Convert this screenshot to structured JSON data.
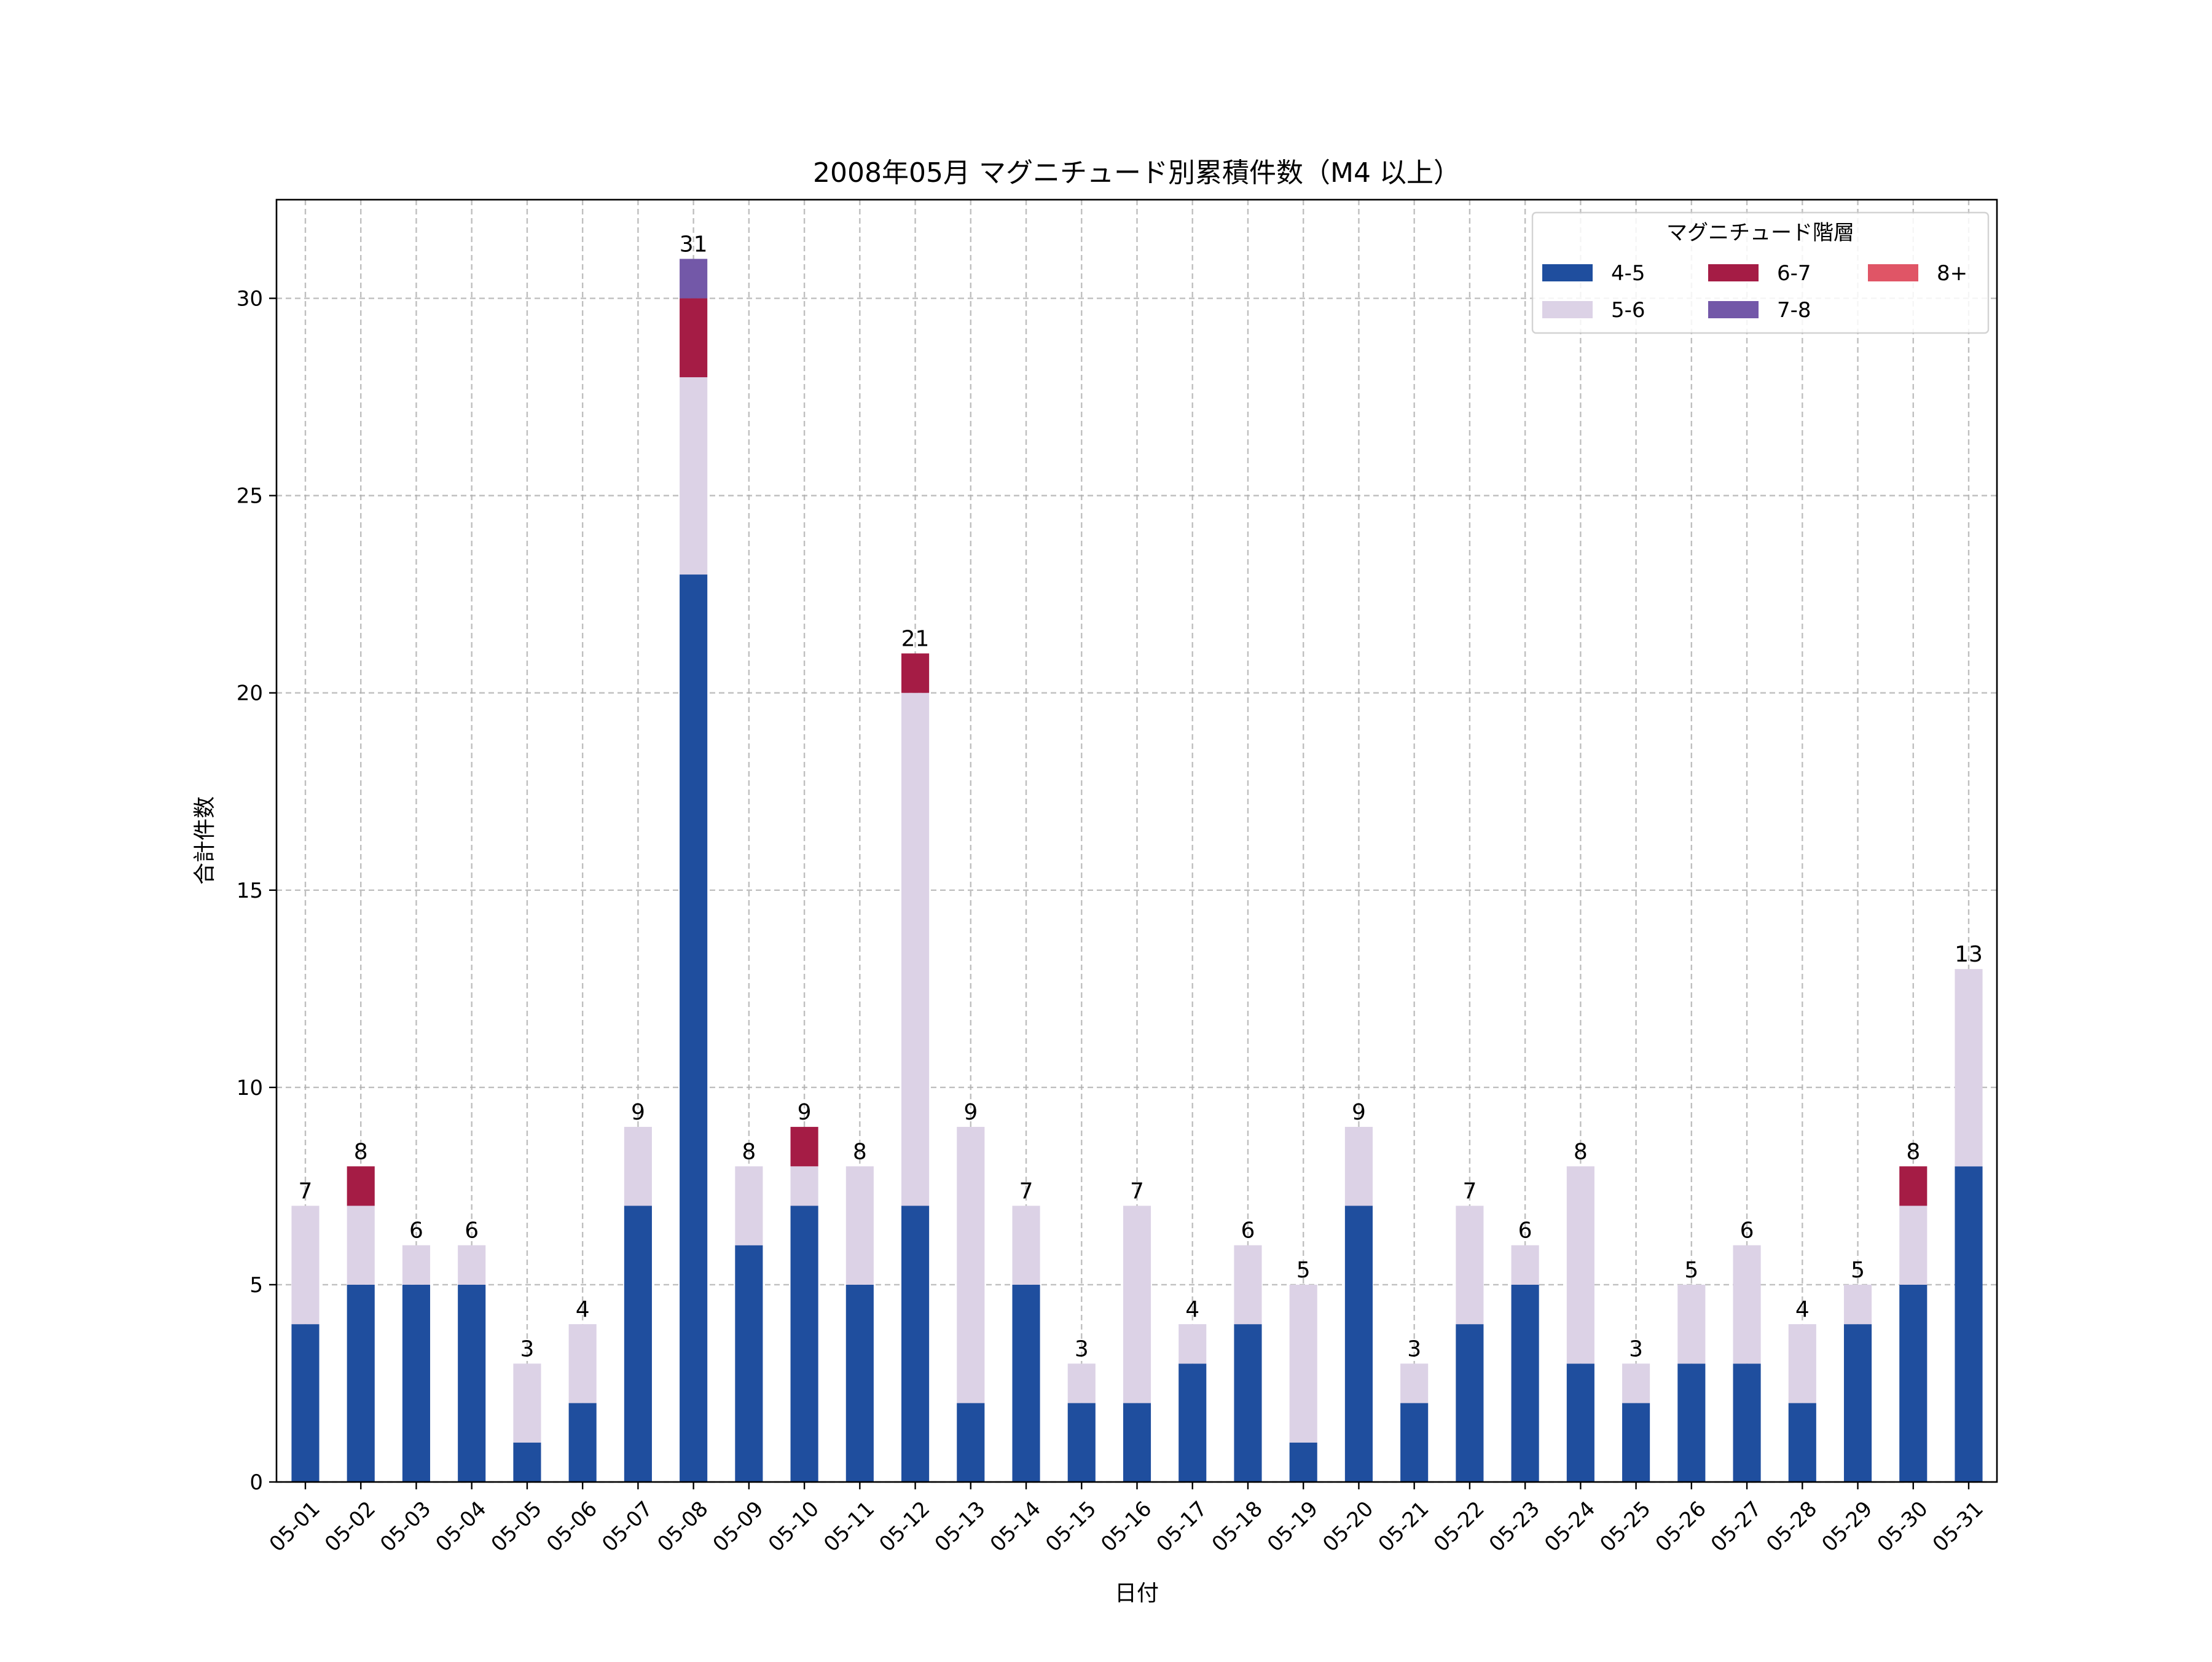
{
  "chart_data": {
    "type": "bar",
    "stacked": true,
    "title": "2008年05月 マグニチュード別累積件数（M4 以上）",
    "xlabel": "日付",
    "ylabel": "合計件数",
    "ylim": [
      0,
      32.5
    ],
    "yticks": [
      0,
      5,
      10,
      15,
      20,
      25,
      30
    ],
    "grid": true,
    "legend_title": "マグニチュード階層",
    "legend_position": "top-right",
    "categories": [
      "05-01",
      "05-02",
      "05-03",
      "05-04",
      "05-05",
      "05-06",
      "05-07",
      "05-08",
      "05-09",
      "05-10",
      "05-11",
      "05-12",
      "05-13",
      "05-14",
      "05-15",
      "05-16",
      "05-17",
      "05-18",
      "05-19",
      "05-20",
      "05-21",
      "05-22",
      "05-23",
      "05-24",
      "05-25",
      "05-26",
      "05-27",
      "05-28",
      "05-29",
      "05-30",
      "05-31"
    ],
    "series": [
      {
        "name": "4-5",
        "color": "#1f4e9e",
        "values": [
          4,
          5,
          5,
          5,
          1,
          2,
          7,
          23,
          6,
          7,
          5,
          7,
          2,
          5,
          2,
          2,
          3,
          4,
          1,
          7,
          2,
          4,
          5,
          3,
          2,
          3,
          3,
          2,
          4,
          5,
          8
        ]
      },
      {
        "name": "5-6",
        "color": "#dcd2e6",
        "values": [
          3,
          2,
          1,
          1,
          2,
          2,
          2,
          5,
          2,
          1,
          3,
          13,
          7,
          2,
          1,
          5,
          1,
          2,
          4,
          2,
          1,
          3,
          1,
          5,
          1,
          2,
          3,
          2,
          1,
          2,
          5
        ]
      },
      {
        "name": "6-7",
        "color": "#a51c45",
        "values": [
          0,
          1,
          0,
          0,
          0,
          0,
          0,
          2,
          0,
          1,
          0,
          1,
          0,
          0,
          0,
          0,
          0,
          0,
          0,
          0,
          0,
          0,
          0,
          0,
          0,
          0,
          0,
          0,
          0,
          1,
          0
        ]
      },
      {
        "name": "7-8",
        "color": "#7358a8",
        "values": [
          0,
          0,
          0,
          0,
          0,
          0,
          0,
          1,
          0,
          0,
          0,
          0,
          0,
          0,
          0,
          0,
          0,
          0,
          0,
          0,
          0,
          0,
          0,
          0,
          0,
          0,
          0,
          0,
          0,
          0,
          0
        ]
      },
      {
        "name": "8+",
        "color": "#e05566",
        "values": [
          0,
          0,
          0,
          0,
          0,
          0,
          0,
          0,
          0,
          0,
          0,
          0,
          0,
          0,
          0,
          0,
          0,
          0,
          0,
          0,
          0,
          0,
          0,
          0,
          0,
          0,
          0,
          0,
          0,
          0,
          0
        ]
      }
    ],
    "totals": [
      7,
      8,
      6,
      6,
      3,
      4,
      9,
      31,
      8,
      9,
      8,
      21,
      9,
      7,
      3,
      7,
      4,
      6,
      5,
      9,
      3,
      7,
      6,
      8,
      3,
      5,
      6,
      4,
      5,
      8,
      13
    ]
  }
}
